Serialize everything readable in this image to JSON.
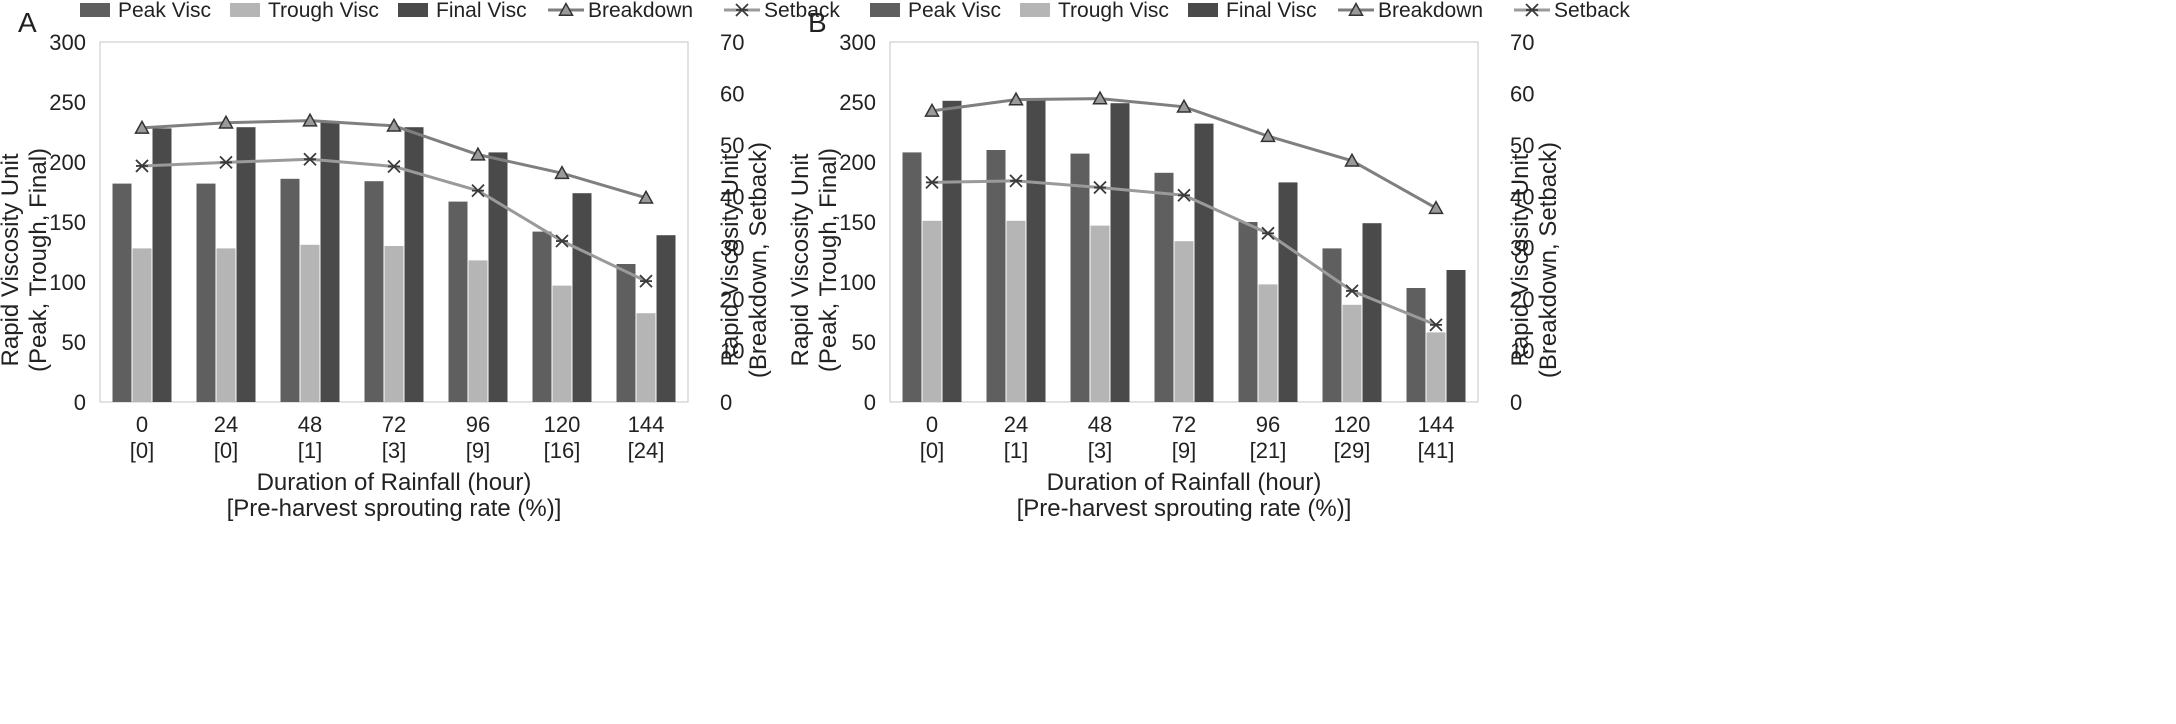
{
  "figure": {
    "xlabel_line1": "Duration of Rainfall (hour)",
    "xlabel_line2": "[Pre-harvest sprouting rate (%)]",
    "ylabel_left_line1": "Rapid Viscosity Unit",
    "ylabel_left_line2": "(Peak, Trough, Final)",
    "ylabel_right_line1": "Rapid Viscosity Unit",
    "ylabel_right_line2": "(Breakdown, Setback)"
  },
  "legend": [
    {
      "name": "Peak Visc",
      "kind": "bar",
      "color": "#5f5f5f"
    },
    {
      "name": "Trough Visc",
      "kind": "bar",
      "color": "#b5b5b5"
    },
    {
      "name": "Final Visc",
      "kind": "bar",
      "color": "#4a4a4a"
    },
    {
      "name": "Breakdown",
      "kind": "line-triangle",
      "color": "#7f7f7f"
    },
    {
      "name": "Setback",
      "kind": "line-star",
      "color": "#9a9a9a"
    }
  ],
  "chart_data": [
    {
      "panel": "A",
      "type": "bar",
      "categories": [
        "0",
        "24",
        "48",
        "72",
        "96",
        "120",
        "144"
      ],
      "sprouting": [
        "[0]",
        "[0]",
        "[1]",
        "[3]",
        "[9]",
        "[16]",
        "[24]"
      ],
      "ylim_left": [
        0,
        300
      ],
      "yticks_left": [
        0,
        50,
        100,
        150,
        200,
        250,
        300
      ],
      "ylim_right": [
        0,
        70
      ],
      "yticks_right": [
        0,
        10,
        20,
        30,
        40,
        50,
        60,
        70
      ],
      "bar_series": [
        {
          "name": "Peak Visc",
          "values": [
            182,
            182,
            186,
            184,
            167,
            142,
            115
          ]
        },
        {
          "name": "Trough Visc",
          "values": [
            128,
            128,
            131,
            130,
            118,
            97,
            74
          ]
        },
        {
          "name": "Final Visc",
          "values": [
            228,
            229,
            233,
            229,
            208,
            174,
            139
          ]
        }
      ],
      "line_series": [
        {
          "name": "Breakdown",
          "axis": "right",
          "values": [
            53.3,
            54.3,
            54.7,
            53.7,
            48.1,
            44.5,
            39.7
          ]
        },
        {
          "name": "Setback",
          "axis": "right",
          "values": [
            45.9,
            46.6,
            47.2,
            45.8,
            41.1,
            31.3,
            23.5
          ]
        }
      ]
    },
    {
      "panel": "B",
      "type": "bar",
      "categories": [
        "0",
        "24",
        "48",
        "72",
        "96",
        "120",
        "144"
      ],
      "sprouting": [
        "[0]",
        "[1]",
        "[3]",
        "[9]",
        "[21]",
        "[29]",
        "[41]"
      ],
      "ylim_left": [
        0,
        300
      ],
      "yticks_left": [
        0,
        50,
        100,
        150,
        200,
        250,
        300
      ],
      "ylim_right": [
        0,
        70
      ],
      "yticks_right": [
        0,
        10,
        20,
        30,
        40,
        50,
        60,
        70
      ],
      "bar_series": [
        {
          "name": "Peak Visc",
          "values": [
            208,
            210,
            207,
            191,
            150,
            128,
            95
          ]
        },
        {
          "name": "Trough Visc",
          "values": [
            151,
            151,
            147,
            134,
            98,
            81,
            58
          ]
        },
        {
          "name": "Final Visc",
          "values": [
            251,
            253,
            249,
            232,
            183,
            149,
            110
          ]
        }
      ],
      "line_series": [
        {
          "name": "Breakdown",
          "axis": "right",
          "values": [
            56.6,
            58.8,
            59.0,
            57.4,
            51.7,
            46.9,
            37.7
          ]
        },
        {
          "name": "Setback",
          "axis": "right",
          "values": [
            42.7,
            43.0,
            41.7,
            40.2,
            32.8,
            21.6,
            15.0
          ]
        }
      ]
    }
  ]
}
